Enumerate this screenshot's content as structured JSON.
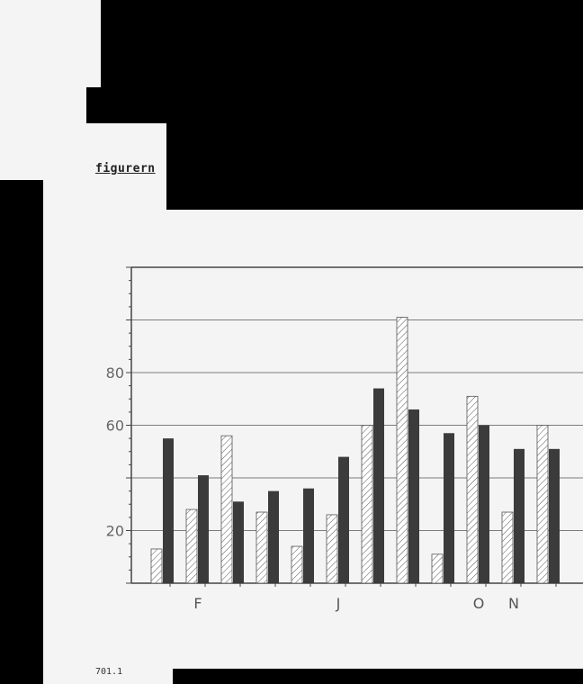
{
  "page": {
    "caption": "figurern",
    "footer": "701.1"
  },
  "chart_data": {
    "type": "bar",
    "title": "",
    "xlabel": "",
    "ylabel": "",
    "ylim": [
      0,
      120
    ],
    "yticks": [
      20,
      60,
      80
    ],
    "categories": [
      "",
      "F",
      "",
      "",
      "",
      "J",
      "",
      "",
      "",
      "O",
      "N",
      ""
    ],
    "series": [
      {
        "style": "hatched",
        "values": [
          13,
          28,
          56,
          27,
          14,
          26,
          60,
          101,
          11,
          71,
          27,
          60
        ]
      },
      {
        "style": "solid",
        "values": [
          55,
          41,
          31,
          35,
          36,
          48,
          74,
          66,
          57,
          60,
          51,
          51
        ]
      }
    ],
    "colors": {
      "hatched_fill": "#ffffff",
      "hatch": "#555555",
      "solid": "#3b3b3b",
      "grid": "#555555",
      "axis": "#444444"
    },
    "grid": true
  }
}
